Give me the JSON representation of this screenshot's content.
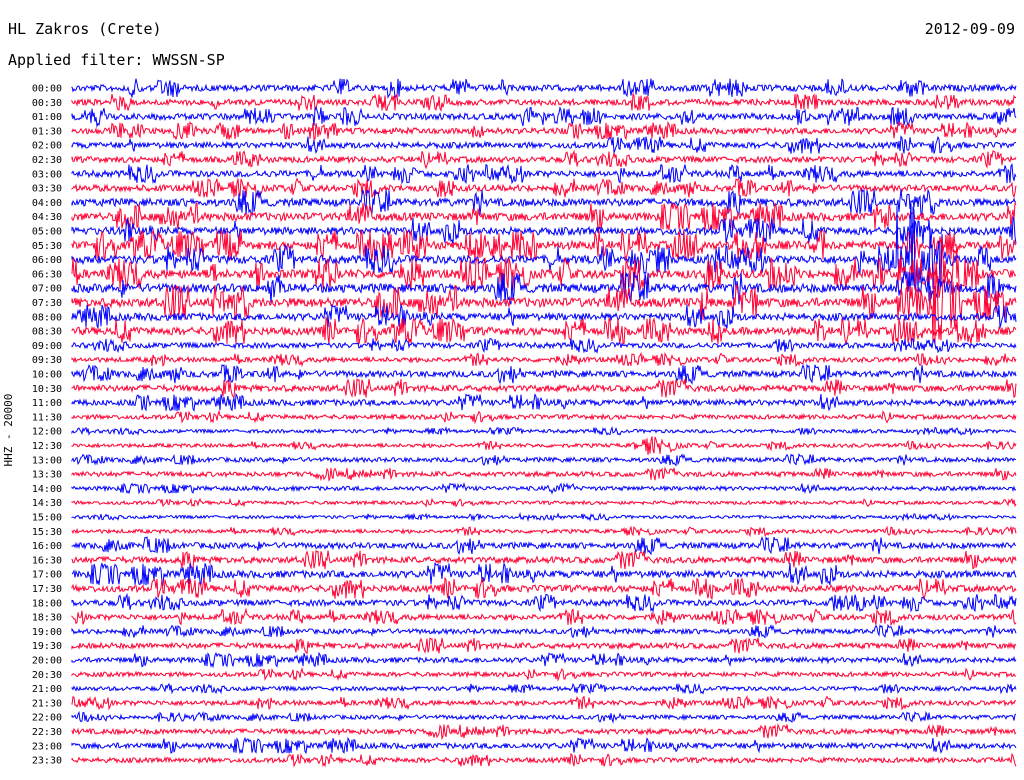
{
  "header": {
    "station": "HL Zakros (Crete)",
    "date": "2012-09-09",
    "filter": "Applied filter: WWSSN-SP",
    "channel_label": "HHZ - 20000"
  },
  "colors": {
    "odd": "#0000ff",
    "even": "#ff0033"
  },
  "chart_data": {
    "type": "line",
    "title": "HL Zakros (Crete)",
    "ylabel": "HHZ - 20000",
    "grid": false,
    "legend": "none",
    "rows": [
      "00:00",
      "00:30",
      "01:00",
      "01:30",
      "02:00",
      "02:30",
      "03:00",
      "03:30",
      "04:00",
      "04:30",
      "05:00",
      "05:30",
      "06:00",
      "06:30",
      "07:00",
      "07:30",
      "08:00",
      "08:30",
      "09:00",
      "09:30",
      "10:00",
      "10:30",
      "11:00",
      "11:30",
      "12:00",
      "12:30",
      "13:00",
      "13:30",
      "14:00",
      "14:30",
      "15:00",
      "15:30",
      "16:00",
      "16:30",
      "17:00",
      "17:30",
      "18:00",
      "18:30",
      "19:00",
      "19:30",
      "20:00",
      "20:30",
      "21:00",
      "21:30",
      "22:00",
      "22:30",
      "23:00",
      "23:30"
    ],
    "row_colors": [
      "blue",
      "red",
      "blue",
      "red",
      "blue",
      "red",
      "blue",
      "red",
      "blue",
      "red",
      "blue",
      "red",
      "blue",
      "red",
      "blue",
      "red",
      "blue",
      "red",
      "blue",
      "red",
      "blue",
      "red",
      "blue",
      "red",
      "blue",
      "red",
      "blue",
      "red",
      "blue",
      "red",
      "blue",
      "red",
      "blue",
      "red",
      "blue",
      "red",
      "blue",
      "red",
      "blue",
      "red",
      "blue",
      "red",
      "blue",
      "red",
      "blue",
      "red",
      "blue",
      "red"
    ],
    "noise_level": [
      0.55,
      0.5,
      0.55,
      0.5,
      0.5,
      0.5,
      0.55,
      0.55,
      0.75,
      0.8,
      0.75,
      0.85,
      0.8,
      0.9,
      0.9,
      0.95,
      0.7,
      0.75,
      0.4,
      0.35,
      0.55,
      0.55,
      0.5,
      0.3,
      0.15,
      0.2,
      0.3,
      0.35,
      0.25,
      0.15,
      0.1,
      0.2,
      0.5,
      0.55,
      0.65,
      0.6,
      0.5,
      0.45,
      0.35,
      0.45,
      0.4,
      0.3,
      0.25,
      0.35,
      0.25,
      0.4,
      0.45,
      0.35
    ],
    "events": [
      {
        "row": "06:00",
        "x_fraction": 0.88,
        "amplitude": 3.5,
        "duration_rows": 4
      },
      {
        "row": "12:30",
        "x_fraction": 0.6,
        "amplitude": 1.5,
        "duration_rows": 1
      }
    ]
  }
}
